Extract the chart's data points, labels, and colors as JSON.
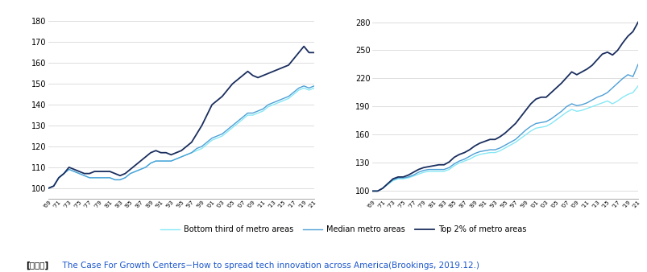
{
  "years": [
    1969,
    1970,
    1971,
    1972,
    1973,
    1974,
    1975,
    1976,
    1977,
    1978,
    1979,
    1980,
    1981,
    1982,
    1983,
    1984,
    1985,
    1986,
    1987,
    1988,
    1989,
    1990,
    1991,
    1992,
    1993,
    1994,
    1995,
    1996,
    1997,
    1998,
    1999,
    2000,
    2001,
    2002,
    2003,
    2004,
    2005,
    2006,
    2007,
    2008,
    2009,
    2010,
    2011,
    2012,
    2013,
    2014,
    2015,
    2016,
    2017,
    2018,
    2019,
    2020,
    2021
  ],
  "left_bottom": [
    100,
    101,
    105,
    107,
    109,
    108,
    107,
    106,
    105,
    105,
    105,
    105,
    105,
    104,
    104,
    105,
    107,
    108,
    109,
    110,
    112,
    113,
    113,
    113,
    113,
    114,
    115,
    116,
    117,
    118,
    119,
    121,
    123,
    124,
    125,
    127,
    129,
    131,
    133,
    135,
    135,
    136,
    137,
    139,
    140,
    141,
    142,
    143,
    145,
    147,
    148,
    147,
    148
  ],
  "left_median": [
    100,
    101,
    105,
    107,
    109,
    108,
    107,
    106,
    105,
    105,
    105,
    105,
    105,
    104,
    104,
    105,
    107,
    108,
    109,
    110,
    112,
    113,
    113,
    113,
    113,
    114,
    115,
    116,
    117,
    119,
    120,
    122,
    124,
    125,
    126,
    128,
    130,
    132,
    134,
    136,
    136,
    137,
    138,
    140,
    141,
    142,
    143,
    144,
    146,
    148,
    149,
    148,
    149
  ],
  "left_top": [
    100,
    101,
    105,
    107,
    110,
    109,
    108,
    107,
    107,
    108,
    108,
    108,
    108,
    107,
    106,
    107,
    109,
    111,
    113,
    115,
    117,
    118,
    117,
    117,
    116,
    117,
    118,
    120,
    122,
    126,
    130,
    135,
    140,
    142,
    144,
    147,
    150,
    152,
    154,
    156,
    154,
    153,
    154,
    155,
    156,
    157,
    158,
    159,
    162,
    165,
    168,
    165,
    165
  ],
  "right_bottom": [
    100,
    100,
    103,
    107,
    111,
    113,
    113,
    114,
    116,
    118,
    120,
    121,
    121,
    121,
    121,
    123,
    127,
    130,
    132,
    134,
    137,
    139,
    140,
    141,
    141,
    143,
    146,
    149,
    152,
    156,
    160,
    164,
    167,
    168,
    169,
    172,
    176,
    180,
    184,
    187,
    185,
    186,
    188,
    190,
    192,
    194,
    196,
    193,
    196,
    200,
    203,
    205,
    212
  ],
  "right_median": [
    100,
    100,
    103,
    108,
    112,
    114,
    114,
    115,
    117,
    120,
    122,
    123,
    123,
    123,
    123,
    125,
    129,
    132,
    134,
    137,
    140,
    142,
    143,
    144,
    144,
    146,
    149,
    152,
    155,
    160,
    165,
    169,
    172,
    173,
    174,
    177,
    181,
    185,
    190,
    193,
    191,
    192,
    194,
    197,
    200,
    202,
    205,
    210,
    215,
    220,
    224,
    222,
    235
  ],
  "right_top": [
    100,
    100,
    103,
    108,
    113,
    115,
    115,
    117,
    120,
    123,
    125,
    126,
    127,
    128,
    128,
    131,
    136,
    139,
    141,
    144,
    148,
    151,
    153,
    155,
    155,
    158,
    162,
    167,
    172,
    179,
    186,
    193,
    198,
    200,
    200,
    205,
    210,
    215,
    221,
    227,
    224,
    227,
    230,
    234,
    240,
    246,
    248,
    245,
    250,
    258,
    265,
    270,
    280
  ],
  "color_bottom": "#87e8f5",
  "color_median": "#4d9fd6",
  "color_top": "#1a2e5e",
  "left_yticks": [
    100,
    110,
    120,
    130,
    140,
    150,
    160,
    170,
    180
  ],
  "left_ylim": [
    95,
    185
  ],
  "right_yticks": [
    100,
    130,
    160,
    190,
    220,
    250,
    280
  ],
  "right_ylim": [
    92,
    292
  ],
  "legend_bottom": "Bottom third of metro areas",
  "legend_median": "Median metro areas",
  "legend_top": "Top 2% of metro areas",
  "source_prefix": "[자료원]",
  "source_text": "  The Case For Growth Centers−How to spread tech innovation across America(Brookings, 2019.12.)"
}
